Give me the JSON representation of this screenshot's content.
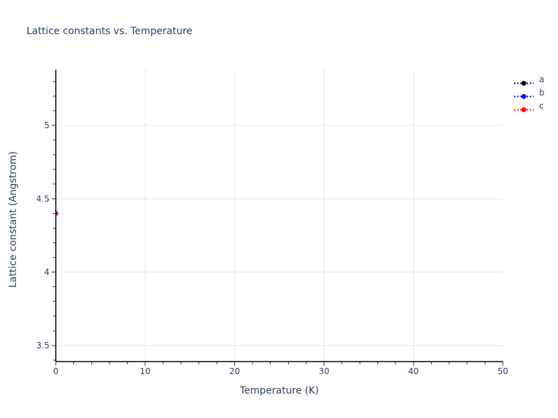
{
  "colors": {
    "background": "#ffffff",
    "text": "#2a3f5f",
    "grid": "#e5e5e5",
    "axis_line": "#000000",
    "tick": "#333333"
  },
  "chart_data": {
    "type": "scatter",
    "title": "Lattice constants vs. Temperature",
    "xlabel": "Temperature (K)",
    "ylabel": "Lattice constant (Angstrom)",
    "xlim": [
      0,
      50
    ],
    "ylim": [
      3.39,
      5.38
    ],
    "x_ticks": [
      0,
      10,
      20,
      30,
      40,
      50
    ],
    "x_tick_labels": [
      "0",
      "10",
      "20",
      "30",
      "40",
      "50"
    ],
    "x_minor_tick_step": 2,
    "y_ticks": [
      3.5,
      4,
      4.5,
      5
    ],
    "y_tick_labels": [
      "3.5",
      "4",
      "4.5",
      "5"
    ],
    "y_minor_tick_step": 0.1,
    "grid": true,
    "legend_position": "top-right-outside",
    "series": [
      {
        "name": "a",
        "color": "#000000",
        "line_style": "dotted",
        "marker": "circle",
        "x": [
          0
        ],
        "y": [
          4.4
        ]
      },
      {
        "name": "b",
        "color": "#0000ff",
        "line_style": "dotted",
        "marker": "circle",
        "x": [
          0
        ],
        "y": [
          4.4
        ]
      },
      {
        "name": "c",
        "color": "#ff0000",
        "line_style": "dotted",
        "marker": "circle",
        "x": [
          0
        ],
        "y": [
          4.4
        ]
      }
    ]
  }
}
